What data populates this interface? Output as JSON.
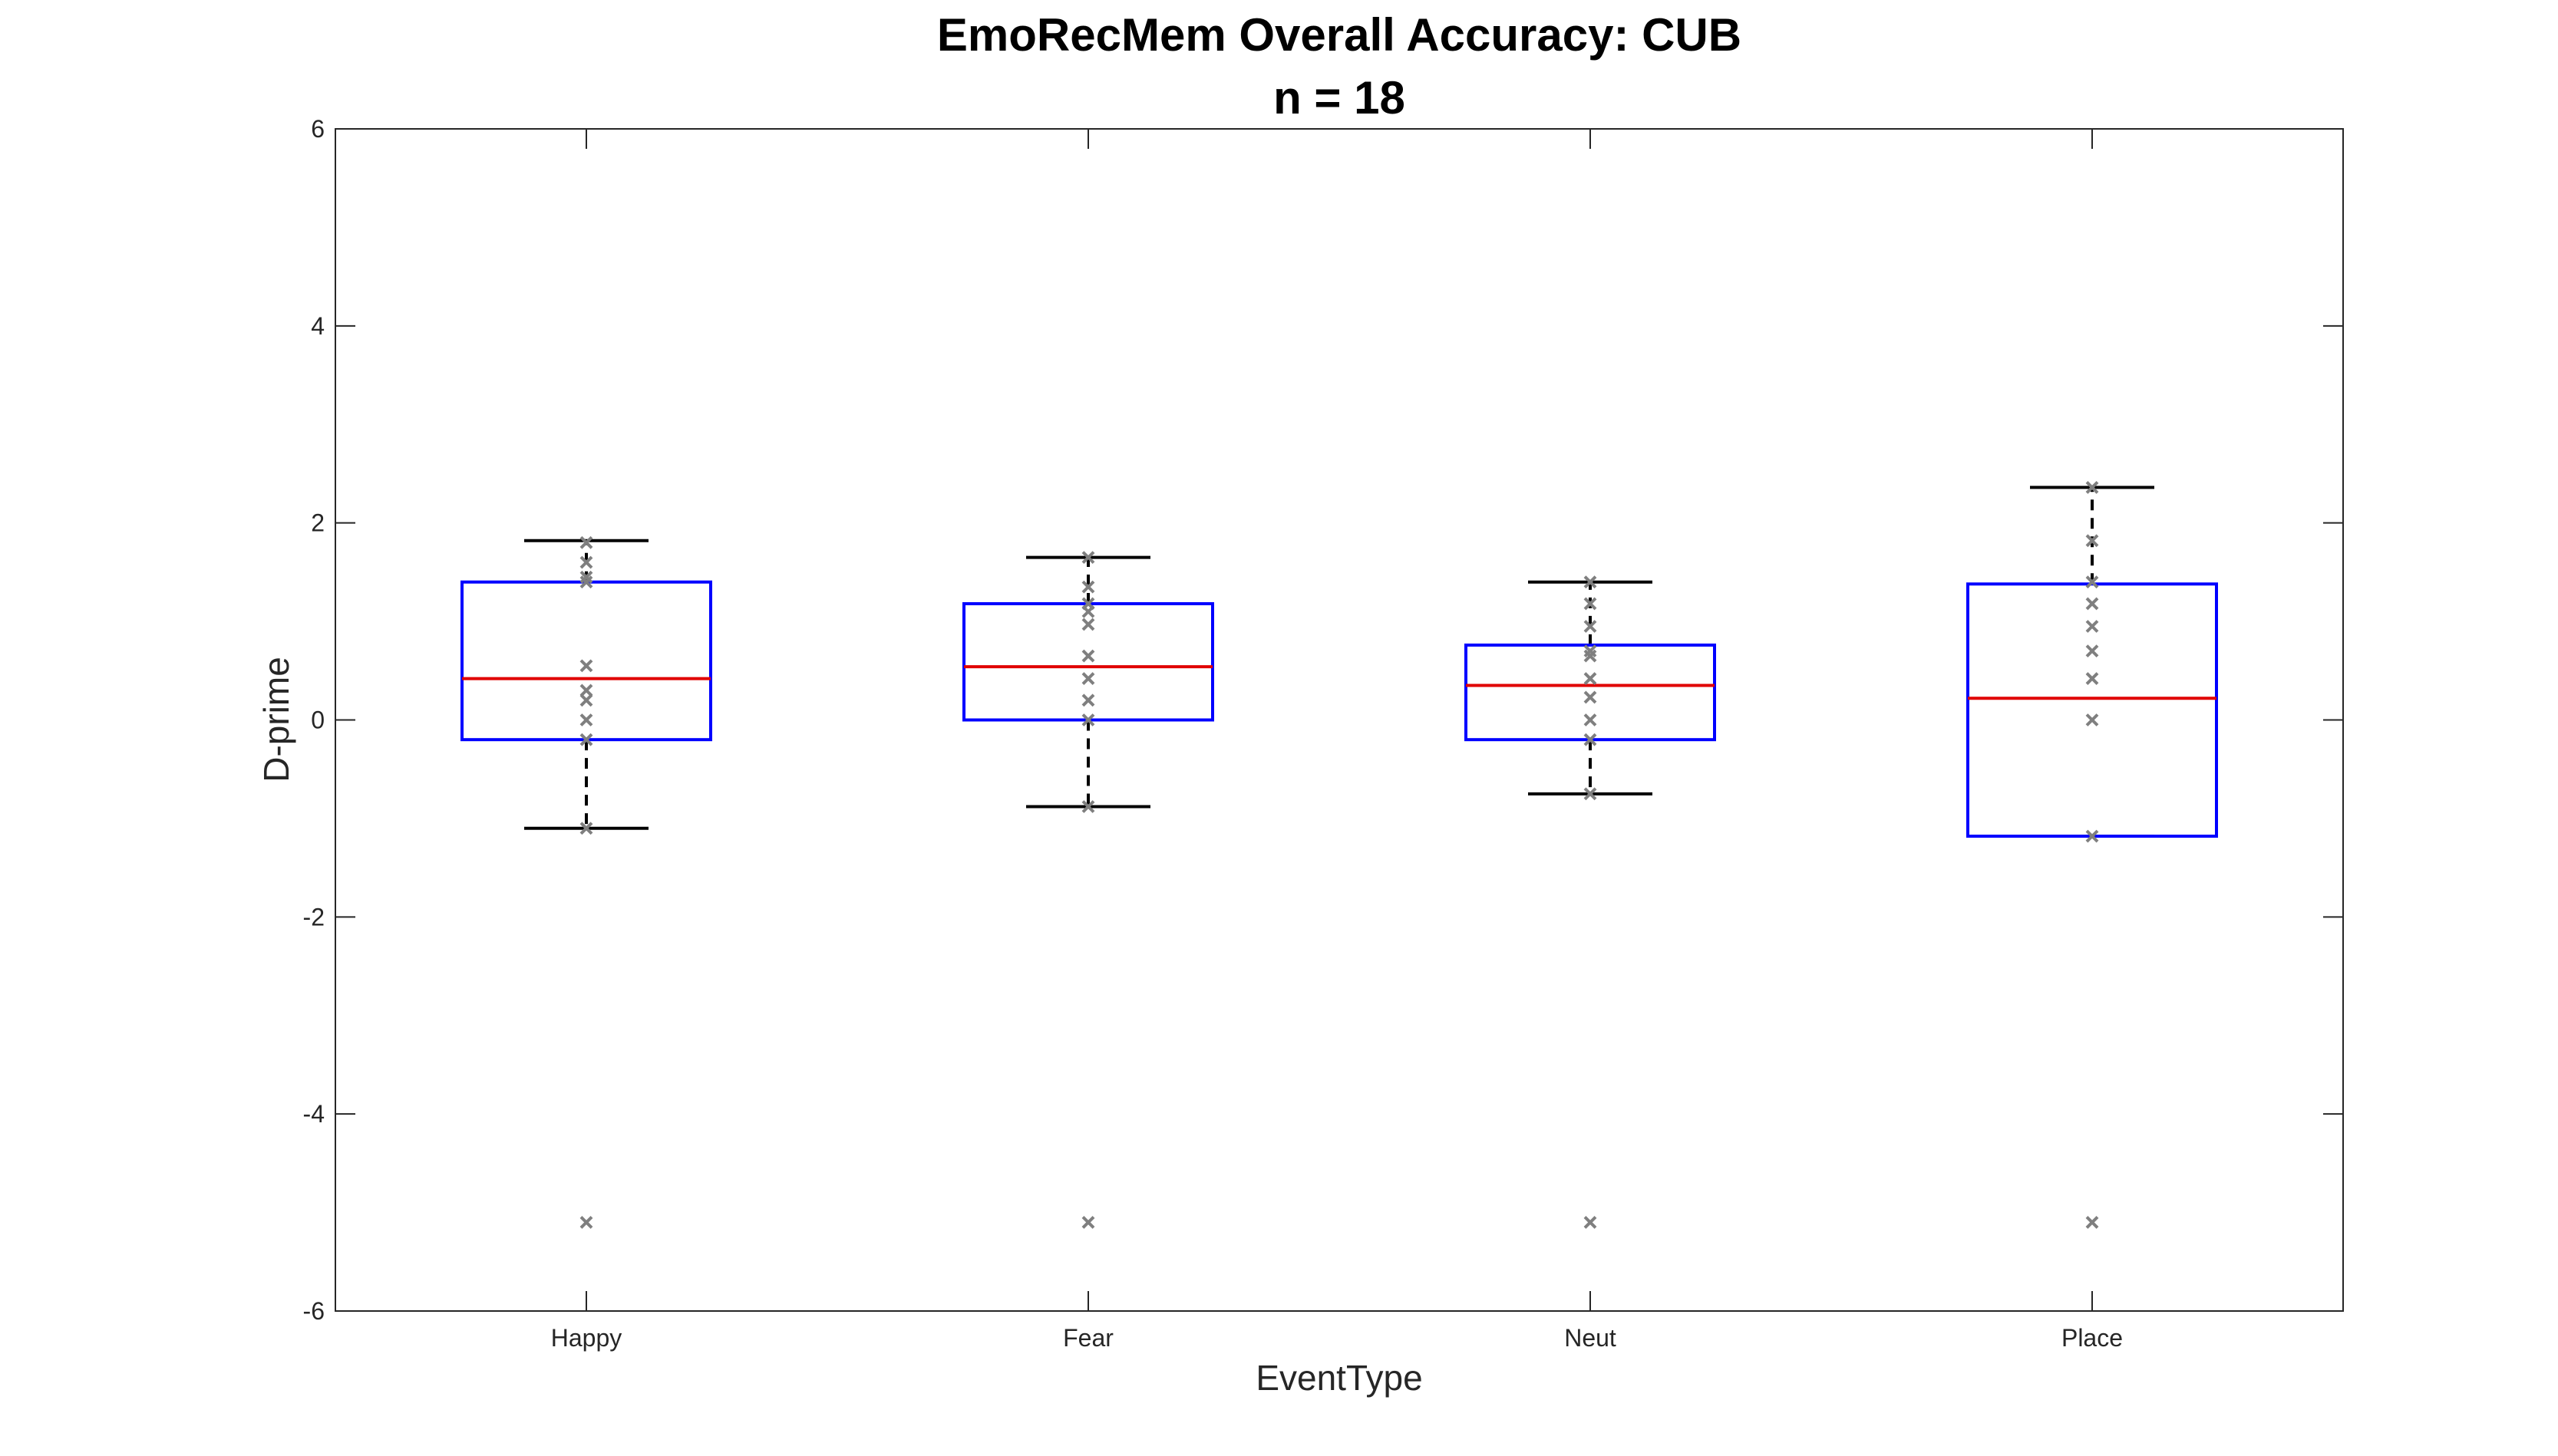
{
  "chart_data": {
    "type": "box",
    "title": "EmoRecMem Overall Accuracy: CUB",
    "subtitle": "n = 18",
    "xlabel": "EventType",
    "ylabel": "D-prime",
    "ylim": [
      -6,
      6
    ],
    "yticks": [
      -6,
      -4,
      -2,
      0,
      2,
      4,
      6
    ],
    "ytick_labels": [
      "-6",
      "-4",
      "-2",
      "0",
      "2",
      "4",
      "6"
    ],
    "categories": [
      "Happy",
      "Fear",
      "Neut",
      "Place"
    ],
    "grid": false,
    "colors": {
      "box": "#0000ff",
      "median": "#e00000",
      "whisker": "#000000",
      "points": "#7f7f7f",
      "axis": "#262626"
    },
    "boxes": [
      {
        "category": "Happy",
        "whisker_low": -1.1,
        "q1": -0.2,
        "median": 0.42,
        "q3": 1.4,
        "whisker_high": 1.82,
        "points": [
          -5.1,
          -1.1,
          -0.2,
          0.0,
          0.2,
          0.3,
          0.55,
          1.4,
          1.45,
          1.6,
          1.8
        ]
      },
      {
        "category": "Fear",
        "whisker_low": -0.88,
        "q1": 0.0,
        "median": 0.54,
        "q3": 1.18,
        "whisker_high": 1.65,
        "points": [
          -5.1,
          -0.88,
          0.0,
          0.2,
          0.42,
          0.65,
          0.97,
          1.1,
          1.18,
          1.35,
          1.65
        ]
      },
      {
        "category": "Neut",
        "whisker_low": -0.75,
        "q1": -0.2,
        "median": 0.35,
        "q3": 0.76,
        "whisker_high": 1.4,
        "points": [
          -5.1,
          -0.75,
          -0.2,
          0.0,
          0.23,
          0.42,
          0.65,
          0.7,
          0.95,
          1.18,
          1.4
        ]
      },
      {
        "category": "Place",
        "whisker_low": -1.18,
        "q1": -1.18,
        "median": 0.22,
        "q3": 1.38,
        "whisker_high": 2.36,
        "points": [
          -5.1,
          -1.18,
          0.0,
          0.42,
          0.7,
          0.95,
          1.18,
          1.4,
          1.82,
          2.36
        ]
      }
    ]
  }
}
